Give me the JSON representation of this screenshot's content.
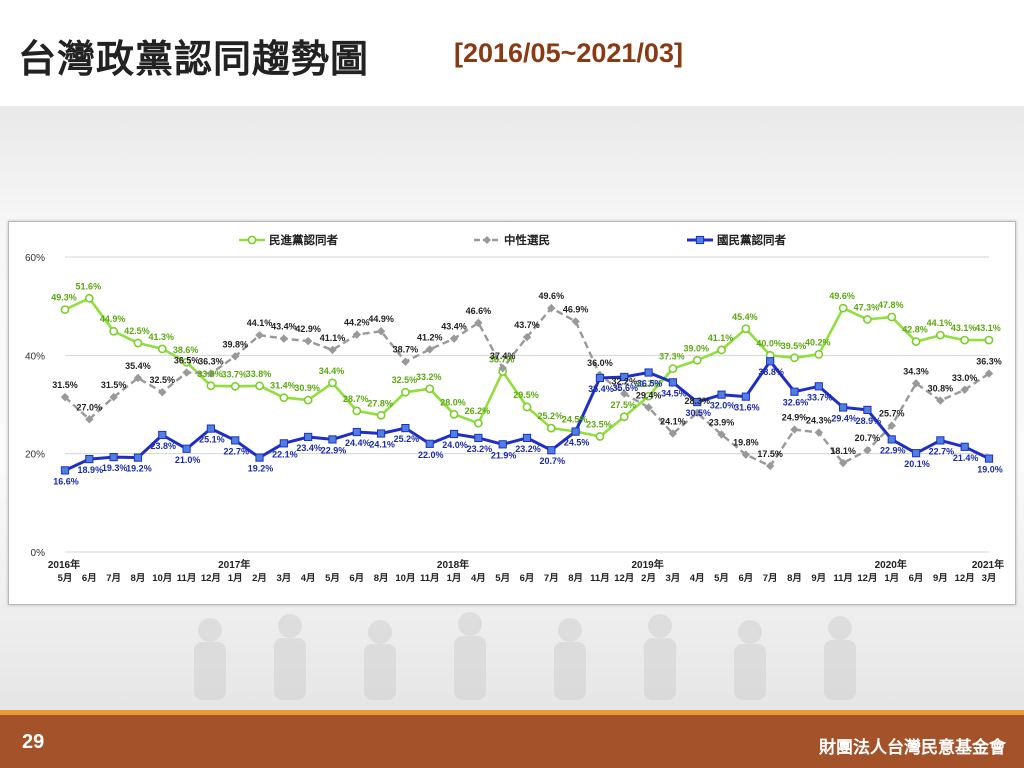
{
  "slide": {
    "title": "台灣政黨認同趨勢圖",
    "date_range": "[2016/05~2021/03]",
    "page_number": "29",
    "organization": "財團法人台灣民意基金會"
  },
  "colors": {
    "dpp": "#8fe03a",
    "dpp_stroke": "#7ccf2b",
    "neutral": "#999999",
    "kmt": "#1f2fc4",
    "kmt_label": "#1a2ab0",
    "title_range": "#8a3a12",
    "footer": "#a3522a",
    "footer_line": "#e89a33"
  },
  "chart_data": {
    "type": "line",
    "ylim": [
      0,
      60
    ],
    "yticks": [
      "0%",
      "20%",
      "40%",
      "60%"
    ],
    "categories": [
      "5月",
      "6月",
      "7月",
      "8月",
      "10月",
      "11月",
      "12月",
      "1月",
      "2月",
      "3月",
      "4月",
      "5月",
      "6月",
      "8月",
      "10月",
      "11月",
      "1月",
      "4月",
      "5月",
      "6月",
      "7月",
      "8月",
      "11月",
      "12月",
      "2月",
      "3月",
      "4月",
      "5月",
      "6月",
      "7月",
      "8月",
      "9月",
      "11月",
      "12月",
      "1月",
      "6月",
      "9月",
      "12月",
      "3月"
    ],
    "year_labels": [
      {
        "label": "2016年",
        "index": 0
      },
      {
        "label": "2017年",
        "index": 7
      },
      {
        "label": "2018年",
        "index": 16
      },
      {
        "label": "2019年",
        "index": 24
      },
      {
        "label": "2020年",
        "index": 34
      },
      {
        "label": "2021年",
        "index": 38
      }
    ],
    "series": [
      {
        "name": "民進黨認同者",
        "key": "dpp",
        "values": [
          49.3,
          51.6,
          44.9,
          42.5,
          41.3,
          38.6,
          33.8,
          33.7,
          33.8,
          31.4,
          30.9,
          34.4,
          28.7,
          27.8,
          32.5,
          33.2,
          28.0,
          26.2,
          36.7,
          29.5,
          25.2,
          24.5,
          23.5,
          27.5,
          31.7,
          37.3,
          39.0,
          41.1,
          45.4,
          40.0,
          39.5,
          40.2,
          49.6,
          47.3,
          47.8,
          42.8,
          44.1,
          43.1,
          43.1
        ]
      },
      {
        "name": "中性選民",
        "key": "neutral",
        "values": [
          31.5,
          27.0,
          31.5,
          35.4,
          32.5,
          36.5,
          36.3,
          39.8,
          44.1,
          43.4,
          42.9,
          41.1,
          44.2,
          44.9,
          38.7,
          41.2,
          43.4,
          46.6,
          37.4,
          43.7,
          49.6,
          46.9,
          36.0,
          32.2,
          29.4,
          24.1,
          28.3,
          23.9,
          19.8,
          17.5,
          24.9,
          24.3,
          18.1,
          20.7,
          25.7,
          34.3,
          30.8,
          33.0,
          36.3
        ]
      },
      {
        "name": "國民黨認同者",
        "key": "kmt",
        "values": [
          16.6,
          18.9,
          19.3,
          19.2,
          23.8,
          21.0,
          25.1,
          22.7,
          19.2,
          22.1,
          23.4,
          22.9,
          24.4,
          24.1,
          25.2,
          22.0,
          24.0,
          23.2,
          21.9,
          23.2,
          20.7,
          24.5,
          35.4,
          35.6,
          36.5,
          34.5,
          30.5,
          32.0,
          31.6,
          38.8,
          32.6,
          33.7,
          29.4,
          28.9,
          22.9,
          20.1,
          22.7,
          21.4,
          19.0
        ]
      }
    ],
    "data_labels": {
      "dpp": [
        "49.3%",
        "51.6%",
        "44.9%",
        "42.5%",
        "41.3%",
        "38.6%",
        "33.8%",
        "33.7%",
        "33.8%",
        "31.4%",
        "30.9%",
        "34.4%",
        "28.7%",
        "27.8%",
        "32.5%",
        "33.2%",
        "28.0%",
        "26.2%",
        "36.7%",
        "29.5%",
        "25.2%",
        "24.5%",
        "23.5%",
        "27.5%",
        "31.7%",
        "37.3%",
        "39.0%",
        "41.1%",
        "45.4%",
        "40.0%",
        "39.5%",
        "40.2%",
        "49.6%",
        "47.3%",
        "47.8%",
        "42.8%",
        "44.1%",
        "43.1%",
        "43.1%"
      ],
      "neutral": [
        "31.5%",
        "27.0%",
        "31.5%",
        "35.4%",
        "32.5%",
        "36.5%",
        "36.3%",
        "39.8%",
        "44.1%",
        "43.4%",
        "42.9%",
        "41.1%",
        "44.2%",
        "44.9%",
        "38.7%",
        "41.2%",
        "43.4%",
        "46.6%",
        "37.4%",
        "43.7%",
        "49.6%",
        "46.9%",
        "36.0%",
        "32.2%",
        "29.4%",
        "24.1%",
        "28.3%",
        "23.9%",
        "19.8%",
        "17.5%",
        "24.9%",
        "24.3%",
        "18.1%",
        "20.7%",
        "25.7%",
        "34.3%",
        "30.8%",
        "33.0%",
        "36.3%"
      ],
      "kmt": [
        "16.6%",
        "18.9%",
        "19.3%",
        "19.2%",
        "23.8%",
        "21.0%",
        "25.1%",
        "22.7%",
        "19.2%",
        "22.1%",
        "23.4%",
        "22.9%",
        "24.4%",
        "24.1%",
        "25.2%",
        "22.0%",
        "24.0%",
        "23.2%",
        "21.9%",
        "23.2%",
        "20.7%",
        "24.5%",
        "35.4%",
        "35.6%",
        "36.5%",
        "34.5%",
        "30.5%",
        "32.0%",
        "31.6%",
        "38.8%",
        "32.6%",
        "33.7%",
        "29.4%",
        "28.9%",
        "22.9%",
        "20.1%",
        "22.7%",
        "21.4%",
        "19.0%"
      ]
    },
    "legend_position": "top",
    "grid": true
  }
}
